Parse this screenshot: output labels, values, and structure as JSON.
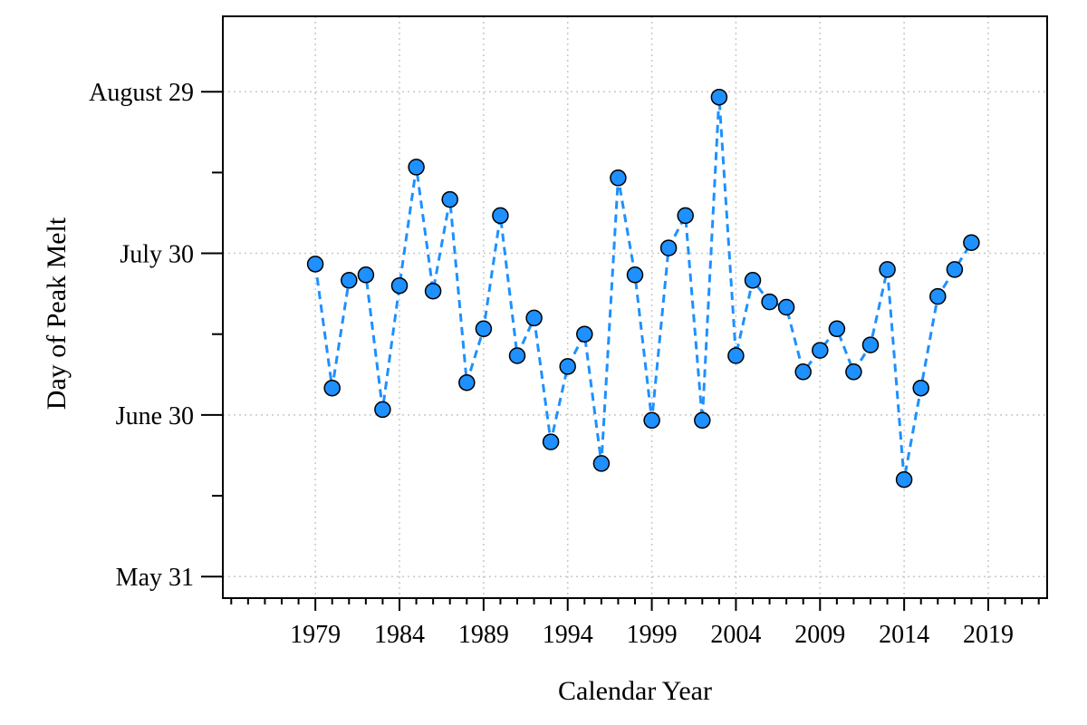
{
  "chart_data": {
    "type": "line",
    "xlabel": "Calendar Year",
    "ylabel": "Day of Peak Melt",
    "xlim": [
      1973.5,
      2022.5
    ],
    "ylim": [
      "2000-05-27",
      "2000-09-12"
    ],
    "x_ticks": [
      1979,
      1984,
      1989,
      1994,
      1999,
      2004,
      2009,
      2014,
      2019
    ],
    "y_tick_labels": [
      {
        "date": "2000-05-31",
        "label": "May 31"
      },
      {
        "date": "2000-06-30",
        "label": "June 30"
      },
      {
        "date": "2000-07-30",
        "label": "July 30"
      },
      {
        "date": "2000-08-29",
        "label": "August 29"
      }
    ],
    "y_minor_ticks": [
      "2000-06-15",
      "2000-07-15",
      "2000-08-14"
    ],
    "grid": true,
    "line_style": "dashed",
    "marker": "circle",
    "color": "#1e90ff",
    "series": [
      {
        "x": [
          1979,
          1980,
          1981,
          1982,
          1983,
          1984,
          1985,
          1986,
          1987,
          1988,
          1989,
          1990,
          1991,
          1992,
          1993,
          1994,
          1995,
          1996,
          1997,
          1998,
          1999,
          2000,
          2001,
          2002,
          2003,
          2004,
          2005,
          2006,
          2007,
          2008,
          2009,
          2010,
          2011,
          2012,
          2013,
          2014,
          2015,
          2016,
          2017,
          2018
        ],
        "y": [
          "2000-07-28",
          "2000-07-05",
          "2000-07-25",
          "2000-07-26",
          "2000-07-01",
          "2000-07-24",
          "2000-08-15",
          "2000-07-23",
          "2000-08-09",
          "2000-07-06",
          "2000-07-16",
          "2000-08-06",
          "2000-07-11",
          "2000-07-18",
          "2000-06-25",
          "2000-07-09",
          "2000-07-15",
          "2000-06-21",
          "2000-08-13",
          "2000-07-26",
          "2000-06-29",
          "2000-07-31",
          "2000-08-06",
          "2000-06-29",
          "2000-08-28",
          "2000-07-11",
          "2000-07-25",
          "2000-07-21",
          "2000-07-20",
          "2000-07-08",
          "2000-07-12",
          "2000-07-16",
          "2000-07-08",
          "2000-07-13",
          "2000-07-27",
          "2000-06-18",
          "2000-07-05",
          "2000-07-22",
          "2000-07-27",
          "2000-08-01"
        ]
      }
    ]
  }
}
